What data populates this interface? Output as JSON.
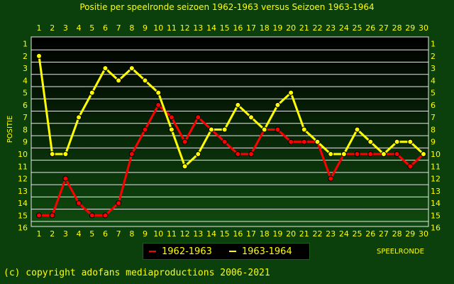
{
  "title": "Positie per speelronde seizoen 1962-1963 versus Seizoen 1963-1964",
  "footer": "(c) copyright adofans mediaproductions 2006-2021",
  "colors": {
    "background": "#0b3f0b",
    "plot_bg_top": "#000000",
    "plot_bg_bottom": "#0f4a0f",
    "grid": "#e8e8e8",
    "text": "#ffff00",
    "series_1962": "#ff0000",
    "series_1963": "#ffff00"
  },
  "chart_data": {
    "type": "line",
    "title": "Positie per speelronde seizoen 1962-1963 versus Seizoen 1963-1964",
    "xlabel": "SPEELRONDE",
    "ylabel": "POSITIE",
    "x": [
      1,
      2,
      3,
      4,
      5,
      6,
      7,
      8,
      9,
      10,
      11,
      12,
      13,
      14,
      15,
      16,
      17,
      18,
      19,
      20,
      21,
      22,
      23,
      24,
      25,
      26,
      27,
      28,
      29,
      30
    ],
    "xlim": [
      1,
      30
    ],
    "ylim": [
      1,
      16
    ],
    "y_inverted": true,
    "yticks": [
      1,
      2,
      3,
      4,
      5,
      6,
      7,
      8,
      9,
      10,
      11,
      12,
      13,
      14,
      15,
      16
    ],
    "grid": true,
    "legend_position": "bottom-center",
    "series": [
      {
        "name": "1962-1963",
        "color": "#ff0000",
        "values": [
          15,
          15,
          12,
          14,
          15,
          15,
          14,
          10,
          8,
          6,
          7,
          9,
          7,
          8,
          9,
          10,
          10,
          8,
          8,
          9,
          9,
          9,
          12,
          10,
          10,
          10,
          10,
          10,
          11,
          10
        ]
      },
      {
        "name": "1963-1964",
        "color": "#ffff00",
        "values": [
          2,
          10,
          10,
          7,
          5,
          3,
          4,
          3,
          4,
          5,
          8,
          11,
          10,
          8,
          8,
          6,
          7,
          8,
          6,
          5,
          8,
          9,
          10,
          10,
          8,
          9,
          10,
          9,
          9,
          10
        ]
      }
    ]
  }
}
